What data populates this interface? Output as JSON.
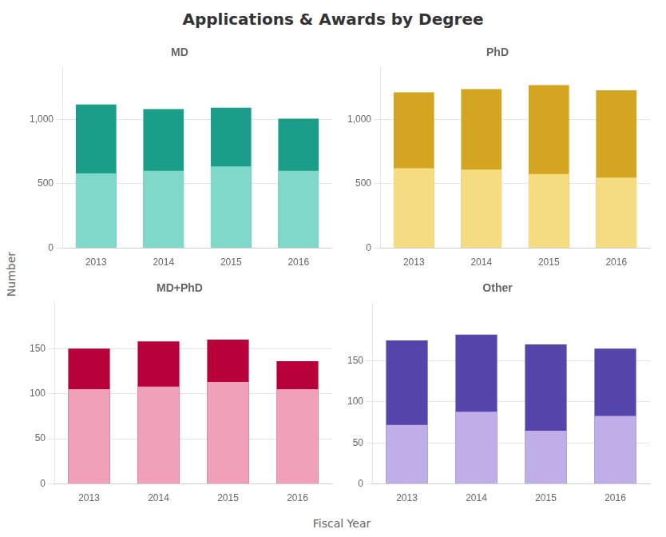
{
  "title": "Applications & Awards by Degree",
  "xlabel": "Fiscal Year",
  "ylabel": "Number",
  "chart_data": [
    {
      "type": "bar",
      "title": "MD",
      "categories": [
        "2013",
        "2014",
        "2015",
        "2016"
      ],
      "series": [
        {
          "color": "#1b9e89",
          "values": [
            1115,
            1080,
            1090,
            1005
          ]
        },
        {
          "color": "#80d8c8",
          "values": [
            580,
            600,
            635,
            600
          ]
        }
      ],
      "stacked": false,
      "ylim": [
        0,
        1400
      ],
      "yticks": [
        0,
        500,
        {
          "value": 1000,
          "label": "1,000"
        }
      ],
      "grid": true
    },
    {
      "type": "bar",
      "title": "PhD",
      "categories": [
        "2013",
        "2014",
        "2015",
        "2016"
      ],
      "series": [
        {
          "color": "#d4a520",
          "values": [
            1210,
            1235,
            1265,
            1225
          ]
        },
        {
          "color": "#f5dc80",
          "values": [
            620,
            610,
            575,
            548
          ]
        }
      ],
      "stacked": false,
      "ylim": [
        0,
        1400
      ],
      "yticks": [
        0,
        500,
        {
          "value": 1000,
          "label": "1,000"
        }
      ],
      "grid": true
    },
    {
      "type": "bar",
      "title": "MD+PhD",
      "categories": [
        "2013",
        "2014",
        "2015",
        "2016"
      ],
      "series": [
        {
          "color": "#b8003a",
          "values": [
            150,
            158,
            160,
            136
          ]
        },
        {
          "color": "#f0a0b8",
          "values": [
            105,
            108,
            113,
            105
          ]
        }
      ],
      "stacked": false,
      "ylim": [
        0,
        200
      ],
      "yticks": [
        0,
        50,
        100,
        150
      ],
      "grid": true
    },
    {
      "type": "bar",
      "title": "Other",
      "categories": [
        "2013",
        "2014",
        "2015",
        "2016"
      ],
      "series": [
        {
          "color": "#5544aa",
          "values": [
            175,
            182,
            170,
            165
          ]
        },
        {
          "color": "#c0aee8",
          "values": [
            72,
            88,
            65,
            83
          ]
        }
      ],
      "stacked": false,
      "ylim": [
        0,
        220
      ],
      "yticks": [
        0,
        50,
        100,
        150
      ],
      "grid": true
    }
  ]
}
